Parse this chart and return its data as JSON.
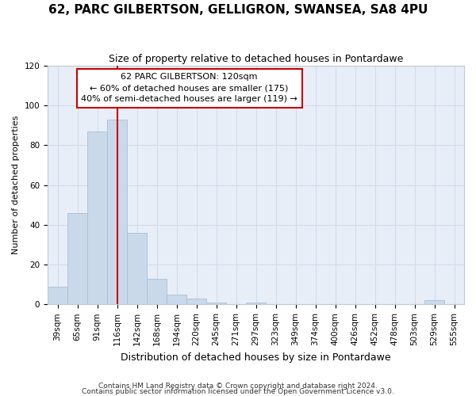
{
  "title1": "62, PARC GILBERTSON, GELLIGRON, SWANSEA, SA8 4PU",
  "title2": "Size of property relative to detached houses in Pontardawe",
  "xlabel": "Distribution of detached houses by size in Pontardawe",
  "ylabel": "Number of detached properties",
  "categories": [
    "39sqm",
    "65sqm",
    "91sqm",
    "116sqm",
    "142sqm",
    "168sqm",
    "194sqm",
    "220sqm",
    "245sqm",
    "271sqm",
    "297sqm",
    "323sqm",
    "349sqm",
    "374sqm",
    "400sqm",
    "426sqm",
    "452sqm",
    "478sqm",
    "503sqm",
    "529sqm",
    "555sqm"
  ],
  "values": [
    9,
    46,
    87,
    93,
    36,
    13,
    5,
    3,
    1,
    0,
    1,
    0,
    0,
    0,
    0,
    0,
    0,
    0,
    0,
    2,
    0
  ],
  "bar_color": "#c9d9ea",
  "bar_edgecolor": "#a8c0d6",
  "grid_color": "#d0dcea",
  "background_color": "#e8eef8",
  "fig_background_color": "#ffffff",
  "red_line_index": 3,
  "annotation_line1": "62 PARC GILBERTSON: 120sqm",
  "annotation_line2": "← 60% of detached houses are smaller (175)",
  "annotation_line3": "40% of semi-detached houses are larger (119) →",
  "annotation_box_facecolor": "#ffffff",
  "annotation_box_edgecolor": "#cc0000",
  "red_line_color": "#cc0000",
  "ylim": [
    0,
    120
  ],
  "yticks": [
    0,
    20,
    40,
    60,
    80,
    100,
    120
  ],
  "footer1": "Contains HM Land Registry data © Crown copyright and database right 2024.",
  "footer2": "Contains public sector information licensed under the Open Government Licence v3.0.",
  "title1_fontsize": 11,
  "title2_fontsize": 9,
  "ylabel_fontsize": 8,
  "xlabel_fontsize": 9,
  "tick_fontsize": 7.5,
  "footer_fontsize": 6.5
}
